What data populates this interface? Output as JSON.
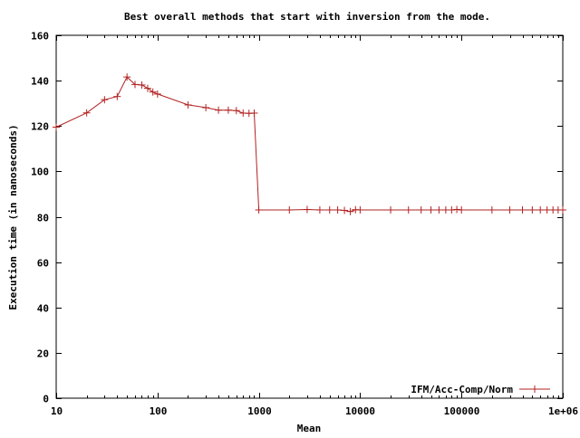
{
  "chart_data": {
    "type": "line",
    "title": "Best overall methods that start with inversion from the mode.",
    "xlabel": "Mean",
    "ylabel": "Execution time (in nanoseconds)",
    "xscale": "log",
    "xlim": [
      10,
      1000000
    ],
    "ylim": [
      0,
      160
    ],
    "x_ticks": [
      {
        "value": 10,
        "label": "10"
      },
      {
        "value": 100,
        "label": "100"
      },
      {
        "value": 1000,
        "label": "1000"
      },
      {
        "value": 10000,
        "label": "10000"
      },
      {
        "value": 100000,
        "label": "100000"
      },
      {
        "value": 1000000,
        "label": "1e+06"
      }
    ],
    "y_ticks": [
      {
        "value": 0,
        "label": "0"
      },
      {
        "value": 20,
        "label": "20"
      },
      {
        "value": 40,
        "label": "40"
      },
      {
        "value": 60,
        "label": "60"
      },
      {
        "value": 80,
        "label": "80"
      },
      {
        "value": 100,
        "label": "100"
      },
      {
        "value": 120,
        "label": "120"
      },
      {
        "value": 140,
        "label": "140"
      },
      {
        "value": 160,
        "label": "160"
      }
    ],
    "grid": false,
    "legend_position": "bottom-right",
    "series": [
      {
        "name": "IFM/Acc-Comp/Norm",
        "color": "#b22222",
        "marker": "plus",
        "points": [
          [
            10,
            119.5
          ],
          [
            20,
            125.8
          ],
          [
            30,
            131.6
          ],
          [
            40,
            133
          ],
          [
            50,
            141.6
          ],
          [
            60,
            138.3
          ],
          [
            70,
            138.1
          ],
          [
            80,
            136.6
          ],
          [
            90,
            135
          ],
          [
            100,
            134.1
          ],
          [
            200,
            129.3
          ],
          [
            300,
            128.1
          ],
          [
            400,
            127
          ],
          [
            500,
            127
          ],
          [
            600,
            126.8
          ],
          [
            700,
            125.7
          ],
          [
            800,
            125.6
          ],
          [
            900,
            125.7
          ],
          [
            1000,
            83
          ],
          [
            2000,
            83
          ],
          [
            3000,
            83.2
          ],
          [
            4000,
            83
          ],
          [
            5000,
            83
          ],
          [
            6000,
            83
          ],
          [
            7000,
            82.8
          ],
          [
            8000,
            82.3
          ],
          [
            9000,
            83.1
          ],
          [
            10000,
            83
          ],
          [
            20000,
            83
          ],
          [
            30000,
            83
          ],
          [
            40000,
            83
          ],
          [
            50000,
            83
          ],
          [
            60000,
            83
          ],
          [
            70000,
            83
          ],
          [
            80000,
            83
          ],
          [
            90000,
            83.2
          ],
          [
            100000,
            83
          ],
          [
            200000,
            83
          ],
          [
            300000,
            83
          ],
          [
            400000,
            83
          ],
          [
            500000,
            83
          ],
          [
            600000,
            83
          ],
          [
            700000,
            83
          ],
          [
            800000,
            83
          ],
          [
            900000,
            83
          ],
          [
            1000000,
            83
          ]
        ]
      }
    ]
  }
}
